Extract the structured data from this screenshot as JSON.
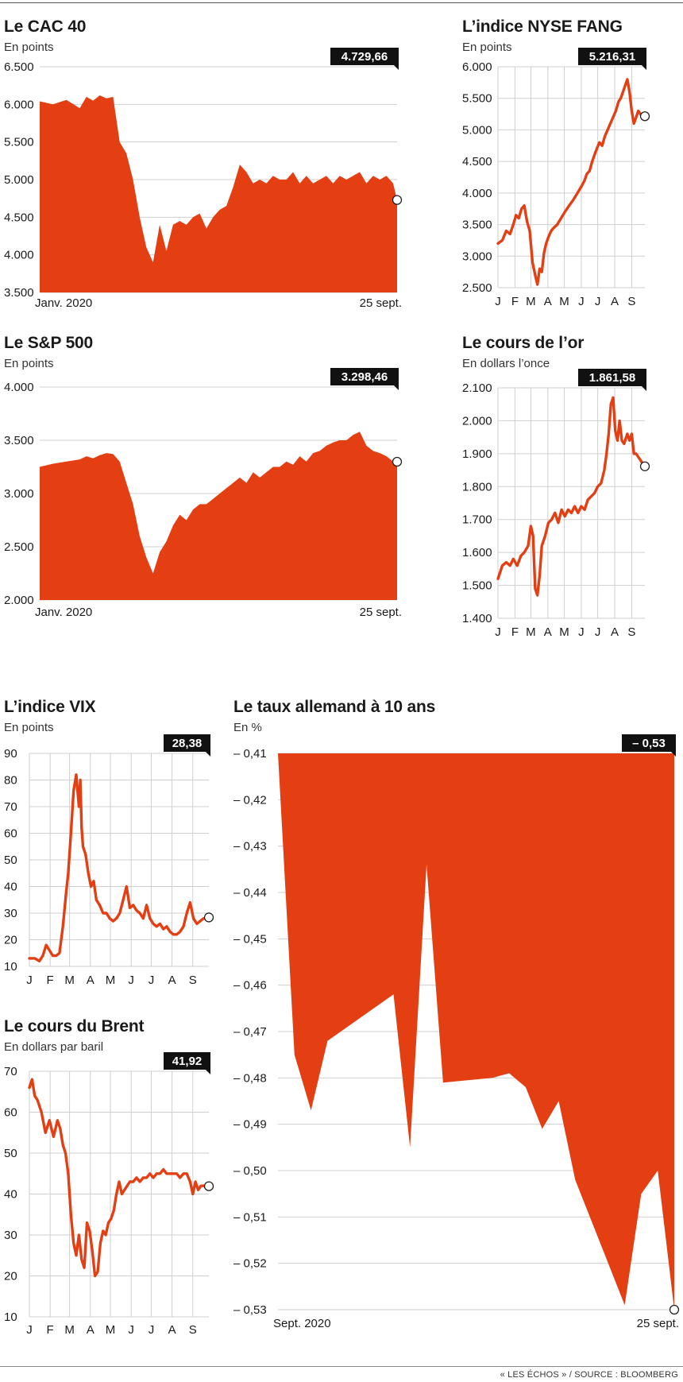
{
  "colors": {
    "accent": "#e43e13",
    "grid": "#cfcfcf",
    "badge_bg": "#111111",
    "badge_text": "#ffffff"
  },
  "source": "« LES ÉCHOS » / SOURCE : BLOOMBERG",
  "chart_data": [
    {
      "id": "cac40",
      "type": "area",
      "title": "Le CAC 40",
      "subtitle": "En points",
      "last_value_label": "4.729,66",
      "last_value": 4729.66,
      "xlim": [
        0,
        268
      ],
      "ylim": [
        3500,
        6500
      ],
      "y_ticks": [
        3500,
        4000,
        4500,
        5000,
        5500,
        6000,
        6500
      ],
      "y_tick_labels": [
        "3.500",
        "4.000",
        "4.500",
        "5.000",
        "5.500",
        "6.000",
        "6.500"
      ],
      "x_tick_labels": [
        {
          "x": 0,
          "label": "Janv. 2020"
        },
        {
          "x": 268,
          "label": "25 sept."
        }
      ],
      "x": [
        0,
        10,
        20,
        30,
        35,
        40,
        45,
        50,
        55,
        60,
        65,
        70,
        75,
        80,
        85,
        90,
        95,
        100,
        105,
        110,
        115,
        120,
        125,
        130,
        135,
        140,
        145,
        150,
        155,
        160,
        165,
        170,
        175,
        180,
        185,
        190,
        195,
        200,
        205,
        210,
        215,
        220,
        225,
        230,
        235,
        240,
        245,
        250,
        255,
        260,
        265,
        268
      ],
      "y": [
        6040,
        6000,
        6060,
        5950,
        6100,
        6050,
        6120,
        6080,
        6100,
        5500,
        5350,
        5000,
        4500,
        4100,
        3900,
        4400,
        4050,
        4400,
        4450,
        4400,
        4500,
        4550,
        4350,
        4500,
        4600,
        4650,
        4900,
        5200,
        5100,
        4950,
        5000,
        4950,
        5050,
        5000,
        5000,
        5100,
        4950,
        5050,
        4950,
        5000,
        5050,
        4950,
        5050,
        5000,
        5050,
        5100,
        4950,
        5050,
        5000,
        5050,
        4950,
        4729.66
      ]
    },
    {
      "id": "nyse_fang",
      "type": "line",
      "title": "L’indice NYSE FANG",
      "subtitle": "En points",
      "last_value_label": "5.216,31",
      "last_value": 5216.31,
      "xlim": [
        0,
        268
      ],
      "ylim": [
        2500,
        6000
      ],
      "y_ticks": [
        2500,
        3000,
        3500,
        4000,
        4500,
        5000,
        5500,
        6000
      ],
      "y_tick_labels": [
        "2.500",
        "3.000",
        "3.500",
        "4.000",
        "4.500",
        "5.000",
        "5.500",
        "6.000"
      ],
      "x_ticks": [
        0,
        31,
        60,
        91,
        121,
        152,
        182,
        213,
        244
      ],
      "x_tick_labels": [
        "J",
        "F",
        "M",
        "A",
        "M",
        "J",
        "J",
        "A",
        "S"
      ],
      "x": [
        0,
        8,
        15,
        22,
        28,
        33,
        38,
        43,
        48,
        53,
        58,
        63,
        68,
        72,
        76,
        80,
        84,
        88,
        92,
        97,
        102,
        108,
        115,
        122,
        130,
        138,
        145,
        152,
        158,
        162,
        167,
        172,
        178,
        185,
        190,
        195,
        200,
        205,
        210,
        215,
        220,
        224,
        228,
        232,
        236,
        240,
        244,
        248,
        252,
        256,
        260,
        264,
        268
      ],
      "y": [
        3200,
        3250,
        3400,
        3350,
        3500,
        3650,
        3600,
        3750,
        3800,
        3550,
        3400,
        2900,
        2700,
        2550,
        2800,
        2750,
        3050,
        3200,
        3300,
        3400,
        3450,
        3500,
        3600,
        3700,
        3800,
        3900,
        4000,
        4100,
        4200,
        4300,
        4350,
        4500,
        4650,
        4800,
        4750,
        4900,
        5000,
        5100,
        5200,
        5300,
        5450,
        5500,
        5600,
        5700,
        5800,
        5600,
        5300,
        5100,
        5200,
        5300,
        5250,
        5200,
        5216.31
      ]
    },
    {
      "id": "sp500",
      "type": "area",
      "title": "Le S&P 500",
      "subtitle": "En points",
      "last_value_label": "3.298,46",
      "last_value": 3298.46,
      "xlim": [
        0,
        268
      ],
      "ylim": [
        2000,
        4000
      ],
      "y_ticks": [
        2000,
        2500,
        3000,
        3500,
        4000
      ],
      "y_tick_labels": [
        "2.000",
        "2.500",
        "3.000",
        "3.500",
        "4.000"
      ],
      "x_tick_labels": [
        {
          "x": 0,
          "label": "Janv. 2020"
        },
        {
          "x": 268,
          "label": "25 sept."
        }
      ],
      "x": [
        0,
        10,
        20,
        30,
        35,
        40,
        45,
        50,
        55,
        60,
        65,
        70,
        75,
        80,
        85,
        90,
        95,
        100,
        105,
        110,
        115,
        120,
        125,
        130,
        135,
        140,
        145,
        150,
        155,
        160,
        165,
        170,
        175,
        180,
        185,
        190,
        195,
        200,
        205,
        210,
        215,
        220,
        225,
        230,
        235,
        240,
        245,
        250,
        255,
        260,
        265,
        268
      ],
      "y": [
        3250,
        3280,
        3300,
        3320,
        3350,
        3330,
        3360,
        3380,
        3370,
        3300,
        3100,
        2900,
        2600,
        2400,
        2250,
        2450,
        2550,
        2700,
        2800,
        2750,
        2850,
        2900,
        2900,
        2950,
        3000,
        3050,
        3100,
        3150,
        3100,
        3200,
        3150,
        3200,
        3250,
        3250,
        3300,
        3270,
        3350,
        3300,
        3380,
        3400,
        3450,
        3480,
        3500,
        3500,
        3550,
        3580,
        3450,
        3400,
        3380,
        3350,
        3300,
        3298.46
      ]
    },
    {
      "id": "gold",
      "type": "line",
      "title": "Le cours de l’or",
      "subtitle": "En dollars l’once",
      "last_value_label": "1.861,58",
      "last_value": 1861.58,
      "xlim": [
        0,
        268
      ],
      "ylim": [
        1400,
        2100
      ],
      "y_ticks": [
        1400,
        1500,
        1600,
        1700,
        1800,
        1900,
        2000,
        2100
      ],
      "y_tick_labels": [
        "1.400",
        "1.500",
        "1.600",
        "1.700",
        "1.800",
        "1.900",
        "2.000",
        "2.100"
      ],
      "x_ticks": [
        0,
        31,
        60,
        91,
        121,
        152,
        182,
        213,
        244
      ],
      "x_tick_labels": [
        "J",
        "F",
        "M",
        "A",
        "M",
        "J",
        "J",
        "A",
        "S"
      ],
      "x": [
        0,
        8,
        15,
        22,
        28,
        35,
        42,
        48,
        55,
        60,
        64,
        68,
        72,
        76,
        80,
        86,
        92,
        98,
        104,
        110,
        116,
        122,
        128,
        134,
        140,
        146,
        152,
        158,
        164,
        170,
        176,
        182,
        188,
        194,
        198,
        202,
        206,
        210,
        214,
        218,
        222,
        226,
        230,
        236,
        240,
        244,
        248,
        252,
        256,
        260,
        264,
        268
      ],
      "y": [
        1520,
        1560,
        1570,
        1560,
        1580,
        1560,
        1590,
        1600,
        1620,
        1680,
        1650,
        1490,
        1470,
        1530,
        1620,
        1650,
        1690,
        1700,
        1720,
        1690,
        1730,
        1710,
        1730,
        1720,
        1740,
        1720,
        1740,
        1730,
        1760,
        1770,
        1780,
        1800,
        1810,
        1850,
        1900,
        1960,
        2050,
        2070,
        1970,
        1940,
        2000,
        1940,
        1930,
        1960,
        1940,
        1960,
        1900,
        1900,
        1890,
        1880,
        1870,
        1861.58
      ]
    },
    {
      "id": "vix",
      "type": "line",
      "title": "L’indice VIX",
      "subtitle": "En points",
      "last_value_label": "28,38",
      "last_value": 28.38,
      "xlim": [
        0,
        268
      ],
      "ylim": [
        10,
        90
      ],
      "y_ticks": [
        10,
        20,
        30,
        40,
        50,
        60,
        70,
        80,
        90
      ],
      "y_tick_labels": [
        "10",
        "20",
        "30",
        "40",
        "50",
        "60",
        "70",
        "80",
        "90"
      ],
      "x_ticks": [
        0,
        31,
        60,
        91,
        121,
        152,
        182,
        213,
        244
      ],
      "x_tick_labels": [
        "J",
        "F",
        "M",
        "A",
        "M",
        "J",
        "J",
        "A",
        "S"
      ],
      "x": [
        0,
        8,
        15,
        20,
        25,
        30,
        35,
        40,
        45,
        50,
        55,
        58,
        62,
        66,
        70,
        74,
        76,
        78,
        80,
        84,
        88,
        92,
        96,
        100,
        105,
        110,
        115,
        120,
        125,
        130,
        135,
        140,
        145,
        150,
        155,
        160,
        165,
        170,
        175,
        180,
        185,
        190,
        195,
        200,
        205,
        210,
        215,
        220,
        225,
        230,
        235,
        240,
        245,
        250,
        255,
        260,
        264,
        268
      ],
      "y": [
        13,
        13,
        12,
        14,
        18,
        16,
        14,
        14,
        15,
        25,
        38,
        45,
        60,
        76,
        82,
        70,
        80,
        62,
        55,
        52,
        45,
        40,
        42,
        35,
        33,
        30,
        30,
        28,
        27,
        28,
        30,
        35,
        40,
        32,
        33,
        31,
        30,
        28,
        33,
        28,
        26,
        25,
        26,
        24,
        25,
        23,
        22,
        22,
        23,
        25,
        30,
        34,
        28,
        26,
        27,
        28,
        28,
        28.38
      ]
    },
    {
      "id": "bund10",
      "type": "area",
      "title": "Le taux allemand à 10 ans",
      "subtitle": "En %",
      "last_value_label": "– 0,53",
      "last_value": -0.53,
      "xlim": [
        1,
        25
      ],
      "ylim": [
        -0.53,
        -0.41
      ],
      "baseline": -0.41,
      "y_ticks": [
        -0.41,
        -0.42,
        -0.43,
        -0.44,
        -0.45,
        -0.46,
        -0.47,
        -0.48,
        -0.49,
        -0.5,
        -0.51,
        -0.52,
        -0.53
      ],
      "y_tick_labels": [
        "– 0,41",
        "– 0,42",
        "– 0,43",
        "– 0,44",
        "– 0,45",
        "– 0,46",
        "– 0,47",
        "– 0,48",
        "– 0,49",
        "– 0,50",
        "– 0,51",
        "– 0,52",
        "– 0,53"
      ],
      "x_tick_labels": [
        {
          "x": 1,
          "label": "Sept. 2020"
        },
        {
          "x": 25,
          "label": "25 sept."
        }
      ],
      "x": [
        1,
        2,
        3,
        4,
        8,
        9,
        10,
        11,
        14,
        15,
        16,
        17,
        18,
        19,
        22,
        23,
        24,
        25
      ],
      "y": [
        -0.41,
        -0.475,
        -0.487,
        -0.472,
        -0.462,
        -0.495,
        -0.434,
        -0.481,
        -0.48,
        -0.479,
        -0.482,
        -0.491,
        -0.485,
        -0.502,
        -0.529,
        -0.505,
        -0.5,
        -0.53
      ]
    },
    {
      "id": "brent",
      "type": "line",
      "title": "Le cours du Brent",
      "subtitle": "En dollars par baril",
      "last_value_label": "41,92",
      "last_value": 41.92,
      "xlim": [
        0,
        268
      ],
      "ylim": [
        10,
        70
      ],
      "y_ticks": [
        10,
        20,
        30,
        40,
        50,
        60,
        70
      ],
      "y_tick_labels": [
        "10",
        "20",
        "30",
        "40",
        "50",
        "60",
        "70"
      ],
      "x_ticks": [
        0,
        31,
        60,
        91,
        121,
        152,
        182,
        213,
        244
      ],
      "x_tick_labels": [
        "J",
        "F",
        "M",
        "A",
        "M",
        "J",
        "J",
        "A",
        "S"
      ],
      "x": [
        0,
        4,
        8,
        12,
        18,
        24,
        30,
        36,
        42,
        46,
        50,
        54,
        58,
        62,
        66,
        70,
        74,
        78,
        82,
        86,
        90,
        94,
        98,
        102,
        106,
        110,
        114,
        118,
        122,
        126,
        130,
        134,
        138,
        142,
        146,
        150,
        155,
        160,
        165,
        170,
        175,
        180,
        185,
        190,
        195,
        200,
        205,
        210,
        215,
        220,
        225,
        230,
        235,
        240,
        244,
        248,
        252,
        256,
        260,
        264,
        268
      ],
      "y": [
        66,
        68,
        64,
        63,
        60,
        55,
        58,
        54,
        58,
        56,
        52,
        50,
        45,
        35,
        28,
        25,
        30,
        24,
        22,
        33,
        31,
        26,
        20,
        21,
        28,
        31,
        30,
        33,
        34,
        36,
        40,
        43,
        40,
        41,
        42,
        43,
        43,
        44,
        43,
        44,
        44,
        45,
        44,
        45,
        45,
        46,
        45,
        45,
        45,
        45,
        44,
        45,
        45,
        43,
        40,
        43,
        41,
        42,
        42,
        42,
        41.92
      ]
    }
  ]
}
